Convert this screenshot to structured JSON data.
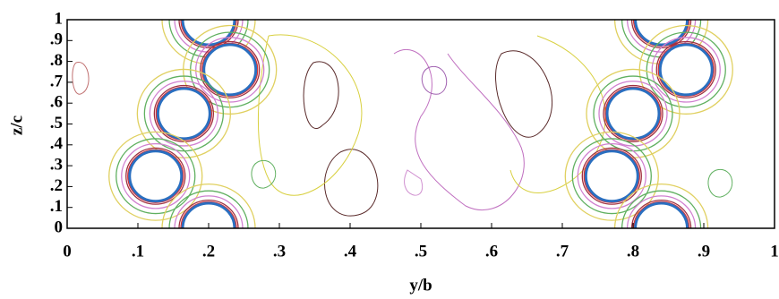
{
  "chart_data": {
    "type": "scatter",
    "x_label": "y/b",
    "y_label": "z/c",
    "x": [
      0.2,
      0.23,
      0.165,
      0.125,
      0.2,
      0.84,
      0.875,
      0.8,
      0.77,
      0.84
    ],
    "values": [
      1,
      0.76,
      0.55,
      0.25,
      0,
      1,
      0.76,
      0.55,
      0.25,
      0
    ],
    "color": "#ffffff",
    "xlim": [
      0,
      1
    ],
    "ylim": [
      0,
      1
    ],
    "xticks": [
      0,
      {
        "value": 0.1,
        "label": ".1"
      },
      {
        "value": 0.2,
        "label": ".2"
      },
      {
        "value": 0.3,
        "label": ".3"
      },
      {
        "value": 0.4,
        "label": ".4"
      },
      {
        "value": 0.5,
        "label": ".5"
      },
      {
        "value": 0.6,
        "label": ".6"
      },
      {
        "value": 0.7,
        "label": ".7"
      },
      {
        "value": 0.8,
        "label": ".8"
      },
      {
        "value": 0.9,
        "label": ".9"
      },
      1
    ],
    "yticks": [
      0,
      {
        "value": 0.1,
        "label": ".1"
      },
      {
        "value": 0.2,
        "label": ".2"
      },
      {
        "value": 0.3,
        "label": ".3"
      },
      {
        "value": 0.4,
        "label": ".4"
      },
      {
        "value": 0.5,
        "label": ".5"
      },
      {
        "value": 0.6,
        "label": ".6"
      },
      {
        "value": 0.7,
        "label": ".7"
      },
      {
        "value": 0.8,
        "label": ".8"
      },
      {
        "value": 0.9,
        "label": ".9"
      },
      1
    ]
  }
}
